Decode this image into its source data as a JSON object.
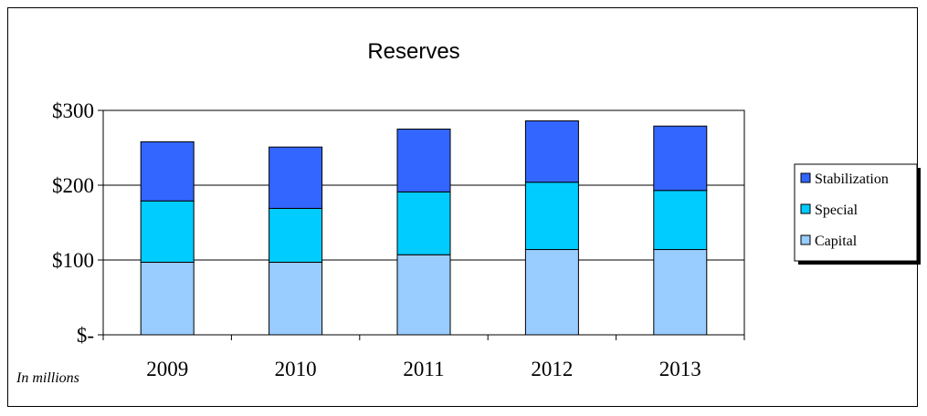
{
  "chart_data": {
    "type": "bar",
    "stacked": true,
    "title": "Reserves",
    "note": "In millions",
    "categories": [
      "2009",
      "2010",
      "2011",
      "2012",
      "2013"
    ],
    "series": [
      {
        "name": "Capital",
        "color": "#99ccff",
        "values": [
          97,
          97,
          107,
          114,
          114
        ]
      },
      {
        "name": "Special",
        "color": "#00ccff",
        "values": [
          82,
          72,
          84,
          90,
          79
        ]
      },
      {
        "name": "Stabilization",
        "color": "#3366ff",
        "values": [
          79,
          82,
          84,
          82,
          86
        ]
      }
    ],
    "legend_order": [
      "Stabilization",
      "Special",
      "Capital"
    ],
    "ylim": [
      0,
      300
    ],
    "yticks": [
      {
        "value": 0,
        "label": "$-"
      },
      {
        "value": 100,
        "label": "$100"
      },
      {
        "value": 200,
        "label": "$200"
      },
      {
        "value": 300,
        "label": "$300"
      }
    ],
    "grid": true,
    "legend_position": "right",
    "xlabel": "",
    "ylabel": ""
  }
}
